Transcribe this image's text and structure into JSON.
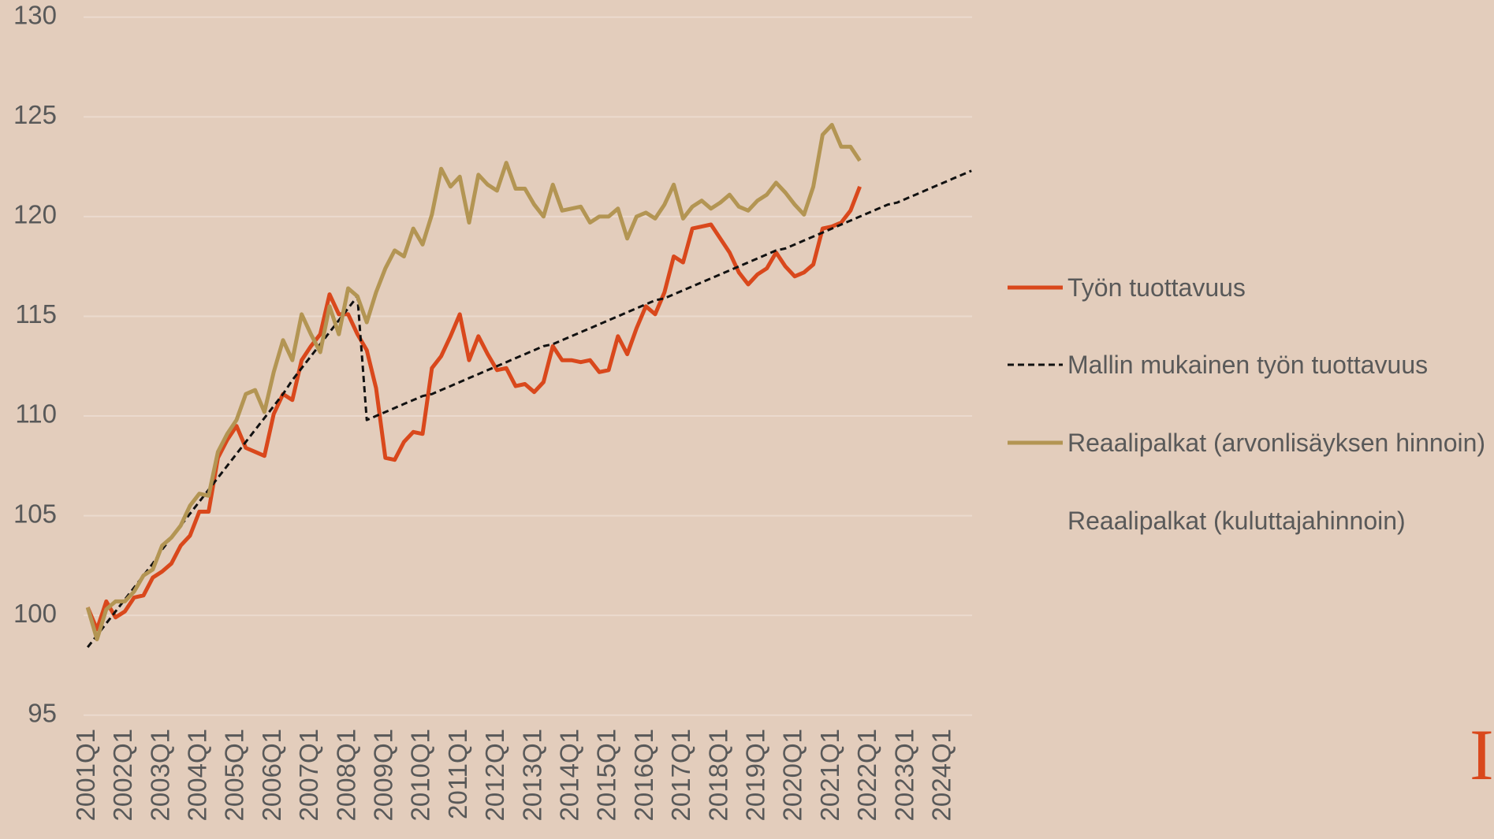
{
  "chart_data": {
    "type": "line",
    "logo": "I",
    "categories": [
      "2001Q1",
      null,
      null,
      null,
      "2002Q1",
      null,
      null,
      null,
      "2003Q1",
      null,
      null,
      null,
      "2004Q1",
      null,
      null,
      null,
      "2005Q1",
      null,
      null,
      null,
      "2006Q1",
      null,
      null,
      null,
      "2007Q1",
      null,
      null,
      null,
      "2008Q1",
      null,
      null,
      null,
      "2009Q1",
      null,
      null,
      null,
      "2010Q1",
      null,
      null,
      null,
      "2011Q1",
      null,
      null,
      null,
      "2012Q1",
      null,
      null,
      null,
      "2013Q1",
      null,
      null,
      null,
      "2014Q1",
      null,
      null,
      null,
      "2015Q1",
      null,
      null,
      null,
      "2016Q1",
      null,
      null,
      null,
      "2017Q1",
      null,
      null,
      null,
      "2018Q1",
      null,
      null,
      null,
      "2019Q1",
      null,
      null,
      null,
      "2020Q1",
      null,
      null,
      null,
      "2021Q1",
      null,
      null,
      null,
      "2022Q1",
      null,
      null,
      null,
      "2023Q1",
      null,
      null,
      null,
      "2024Q1",
      null,
      null,
      null
    ],
    "ylim": [
      95,
      130
    ],
    "yticks": [
      95,
      100,
      105,
      110,
      115,
      120,
      125,
      130
    ],
    "grid": true,
    "series": [
      {
        "name": "Työn tuottavuus",
        "color": "#d9481c",
        "dash": false,
        "values": [
          100.4,
          99.3,
          100.7,
          99.9,
          100.2,
          100.9,
          101.0,
          101.9,
          102.2,
          102.6,
          103.5,
          104.0,
          105.2,
          105.2,
          107.9,
          108.8,
          109.5,
          108.4,
          108.2,
          108.0,
          110.1,
          111.1,
          110.8,
          112.8,
          113.5,
          114.1,
          116.1,
          115.1,
          115.1,
          114.1,
          113.3,
          111.4,
          107.9,
          107.8,
          108.7,
          109.2,
          109.1,
          112.4,
          113.0,
          114.0,
          115.1,
          112.8,
          114.0,
          113.1,
          112.3,
          112.4,
          111.5,
          111.6,
          111.2,
          111.7,
          113.5,
          112.8,
          112.8,
          112.7,
          112.8,
          112.2,
          112.3,
          114.0,
          113.1,
          114.4,
          115.5,
          115.1,
          116.2,
          118.0,
          117.7,
          119.4,
          119.5,
          119.6,
          118.9,
          118.2,
          117.2,
          116.6,
          117.1,
          117.4,
          118.2,
          117.5,
          117.0,
          117.2,
          117.6,
          119.4,
          119.5,
          119.7,
          120.3,
          121.5,
          null,
          null,
          null,
          null,
          null,
          null,
          null,
          null,
          null,
          null,
          null,
          null
        ]
      },
      {
        "name": "Mallin mukainen työn tuottavuus",
        "color": "#111111",
        "dash": true,
        "values": [
          98.4,
          99.0,
          99.6,
          100.2,
          100.8,
          101.4,
          102.0,
          102.6,
          103.3,
          103.9,
          104.5,
          105.1,
          105.7,
          106.3,
          106.9,
          107.5,
          108.1,
          108.7,
          109.3,
          109.9,
          110.5,
          111.1,
          111.8,
          112.4,
          113.0,
          113.6,
          114.2,
          114.8,
          115.4,
          116.0,
          109.8,
          110.0,
          110.2,
          110.4,
          110.6,
          110.8,
          111.0,
          111.1,
          111.3,
          111.5,
          111.7,
          111.9,
          112.1,
          112.3,
          112.5,
          112.7,
          112.9,
          113.1,
          113.3,
          113.5,
          113.6,
          113.8,
          114.0,
          114.2,
          114.4,
          114.6,
          114.8,
          115.0,
          115.2,
          115.4,
          115.6,
          115.8,
          115.9,
          116.1,
          116.3,
          116.5,
          116.7,
          116.9,
          117.1,
          117.3,
          117.5,
          117.7,
          117.9,
          118.1,
          118.3,
          118.4,
          118.6,
          118.8,
          119.0,
          119.2,
          119.4,
          119.6,
          119.8,
          120.0,
          120.2,
          120.4,
          120.6,
          120.7,
          120.9,
          121.1,
          121.3,
          121.5,
          121.7,
          121.9,
          122.1,
          122.3
        ]
      },
      {
        "name": "Reaalipalkat (arvonlisäyksen hinnoin)",
        "color": "#b39553",
        "dash": false,
        "values": [
          100.4,
          98.8,
          100.3,
          100.7,
          100.7,
          101.2,
          102.0,
          102.3,
          103.5,
          103.9,
          104.5,
          105.5,
          106.1,
          106.0,
          108.2,
          109.1,
          109.8,
          111.1,
          111.3,
          110.2,
          112.2,
          113.8,
          112.8,
          115.1,
          114.1,
          113.2,
          115.5,
          114.1,
          116.4,
          116.0,
          114.7,
          116.2,
          117.4,
          118.3,
          118.0,
          119.4,
          118.6,
          120.1,
          122.4,
          121.5,
          122.0,
          119.7,
          122.1,
          121.6,
          121.3,
          122.7,
          121.4,
          121.4,
          120.6,
          120.0,
          121.6,
          120.3,
          120.4,
          120.5,
          119.7,
          120.0,
          120.0,
          120.4,
          118.9,
          120.0,
          120.2,
          119.9,
          120.6,
          121.6,
          119.9,
          120.5,
          120.8,
          120.4,
          120.7,
          121.1,
          120.5,
          120.3,
          120.8,
          121.1,
          121.7,
          121.2,
          120.6,
          120.1,
          121.5,
          124.1,
          124.6,
          123.5,
          123.5,
          122.8,
          null,
          null,
          null,
          null,
          null,
          null,
          null,
          null,
          null,
          null,
          null,
          null
        ]
      },
      {
        "name": "Reaalipalkat (kuluttajahinnoin)",
        "values": [
          null,
          null,
          null,
          null,
          null,
          null,
          null,
          null,
          null,
          null,
          null,
          null,
          null,
          null,
          null,
          null,
          null,
          null,
          null,
          null,
          null,
          null,
          null,
          null,
          null,
          null,
          null,
          null,
          null,
          null,
          null,
          null,
          null,
          null,
          null,
          null,
          null,
          null,
          null,
          null,
          null,
          null,
          null,
          null,
          null,
          null,
          null,
          null,
          null,
          null,
          null,
          null,
          null,
          null,
          null,
          null,
          null,
          null,
          null,
          null,
          null,
          null,
          null,
          null,
          null,
          null,
          null,
          null,
          null,
          null,
          null,
          null,
          null,
          null,
          null,
          null,
          null,
          null,
          null,
          null,
          null,
          null,
          null,
          null,
          null,
          null,
          null,
          null,
          null,
          null,
          null,
          null,
          null,
          null,
          null,
          null
        ]
      }
    ]
  }
}
